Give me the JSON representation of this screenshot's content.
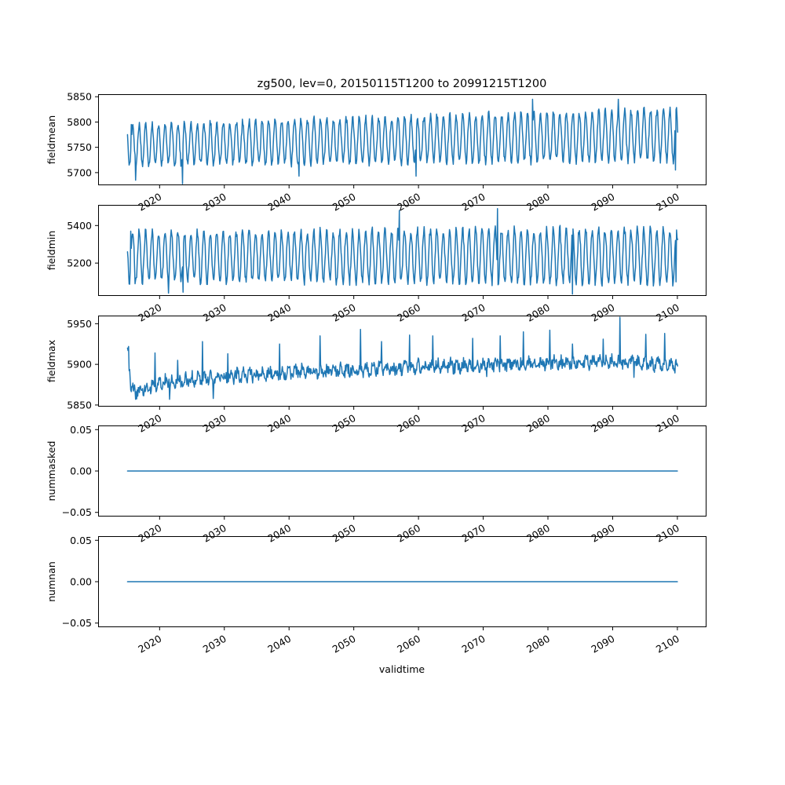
{
  "figure": {
    "title": "zg500, lev=0, 20150115T1200 to 20991215T1200",
    "xlabel": "validtime",
    "line_color": "#1f77b4",
    "x_ticks": [
      2020,
      2030,
      2040,
      2050,
      2060,
      2070,
      2080,
      2090,
      2100
    ],
    "x_tick_labels": [
      "2020",
      "2030",
      "2040",
      "2050",
      "2060",
      "2070",
      "2080",
      "2090",
      "2100"
    ]
  },
  "chart_data": [
    {
      "type": "line",
      "ylabel": "fieldmean",
      "xlim": [
        2010.5,
        2104.5
      ],
      "ylim": [
        5675,
        5855
      ],
      "yticks": [
        5700,
        5750,
        5800,
        5850
      ],
      "ytick_labels": [
        "5700",
        "5750",
        "5800",
        "5850"
      ],
      "x_range": [
        2015.04,
        2100.0
      ],
      "seasonal": {
        "baseline_start": 5755,
        "baseline_end": 5775,
        "amplitude_start": 40,
        "amplitude_end": 50,
        "phase": 1.2
      },
      "x_samples": [
        2015.04,
        2015.6,
        2016.3,
        2023.5,
        2041.5,
        2059.6,
        2077.6,
        2090.9,
        2099.7,
        2100.0
      ],
      "y_samples": [
        5775,
        5795,
        5685,
        5678,
        5693,
        5693,
        5845,
        5845,
        5705,
        5780
      ]
    },
    {
      "type": "line",
      "ylabel": "fieldmin",
      "xlim": [
        2010.5,
        2104.5
      ],
      "ylim": [
        5025,
        5510
      ],
      "yticks": [
        5200,
        5400
      ],
      "ytick_labels": [
        "5200",
        "5400"
      ],
      "x_range": [
        2015.04,
        2100.0
      ],
      "seasonal": {
        "baseline_start": 5235,
        "baseline_end": 5240,
        "amplitude_start": 130,
        "amplitude_end": 145,
        "phase": 1.3
      },
      "x_samples": [
        2015.04,
        2015.5,
        2016.2,
        2021.4,
        2023.6,
        2057.0,
        2072.2,
        2083.8,
        2099.8,
        2100.0
      ],
      "y_samples": [
        5260,
        5370,
        5090,
        5040,
        5045,
        5480,
        5490,
        5035,
        5100,
        5325
      ]
    },
    {
      "type": "line",
      "ylabel": "fieldmax",
      "xlim": [
        2010.5,
        2104.5
      ],
      "ylim": [
        5848,
        5960
      ],
      "yticks": [
        5850,
        5900,
        5950
      ],
      "ytick_labels": [
        "5850",
        "5900",
        "5950"
      ],
      "x_range": [
        2015.04,
        2100.0
      ],
      "trend_x": [
        2015.04,
        2015.6,
        2017.0,
        2020.0,
        2025.0,
        2030.0,
        2040.0,
        2050.0,
        2060.0,
        2070.0,
        2080.0,
        2090.0,
        2100.0
      ],
      "trend_y": [
        5920,
        5870,
        5866,
        5878,
        5882,
        5885,
        5890,
        5893,
        5897,
        5899,
        5901,
        5904,
        5898
      ],
      "peaks_x": [
        2015.2,
        2019.3,
        2022.8,
        2026.6,
        2030.5,
        2038.5,
        2044.8,
        2051.0,
        2054.3,
        2058.6,
        2062.2,
        2068.4,
        2072.6,
        2076.2,
        2080.3,
        2083.8,
        2088.5,
        2091.1,
        2095.1,
        2098.0
      ],
      "peaks_y": [
        5922,
        5914,
        5905,
        5928,
        5913,
        5925,
        5935,
        5943,
        5928,
        5936,
        5935,
        5932,
        5935,
        5940,
        5942,
        5925,
        5931,
        5958,
        5937,
        5938
      ],
      "troughs_x": [
        2016.3,
        2021.5,
        2028.3,
        2070.5,
        2093.3
      ],
      "troughs_y": [
        5857,
        5857,
        5858,
        5885,
        5884
      ]
    },
    {
      "type": "line",
      "ylabel": "nummasked",
      "xlim": [
        2010.5,
        2104.5
      ],
      "ylim": [
        -0.055,
        0.055
      ],
      "yticks": [
        -0.05,
        0.0,
        0.05
      ],
      "ytick_labels": [
        "−0.05",
        "0.00",
        "0.05"
      ],
      "x": [
        2015.04,
        2100.0
      ],
      "y": [
        0.0,
        0.0
      ]
    },
    {
      "type": "line",
      "ylabel": "numnan",
      "xlim": [
        2010.5,
        2104.5
      ],
      "ylim": [
        -0.055,
        0.055
      ],
      "yticks": [
        -0.05,
        0.0,
        0.05
      ],
      "ytick_labels": [
        "−0.05",
        "0.00",
        "0.05"
      ],
      "x": [
        2015.04,
        2100.0
      ],
      "y": [
        0.0,
        0.0
      ]
    }
  ]
}
